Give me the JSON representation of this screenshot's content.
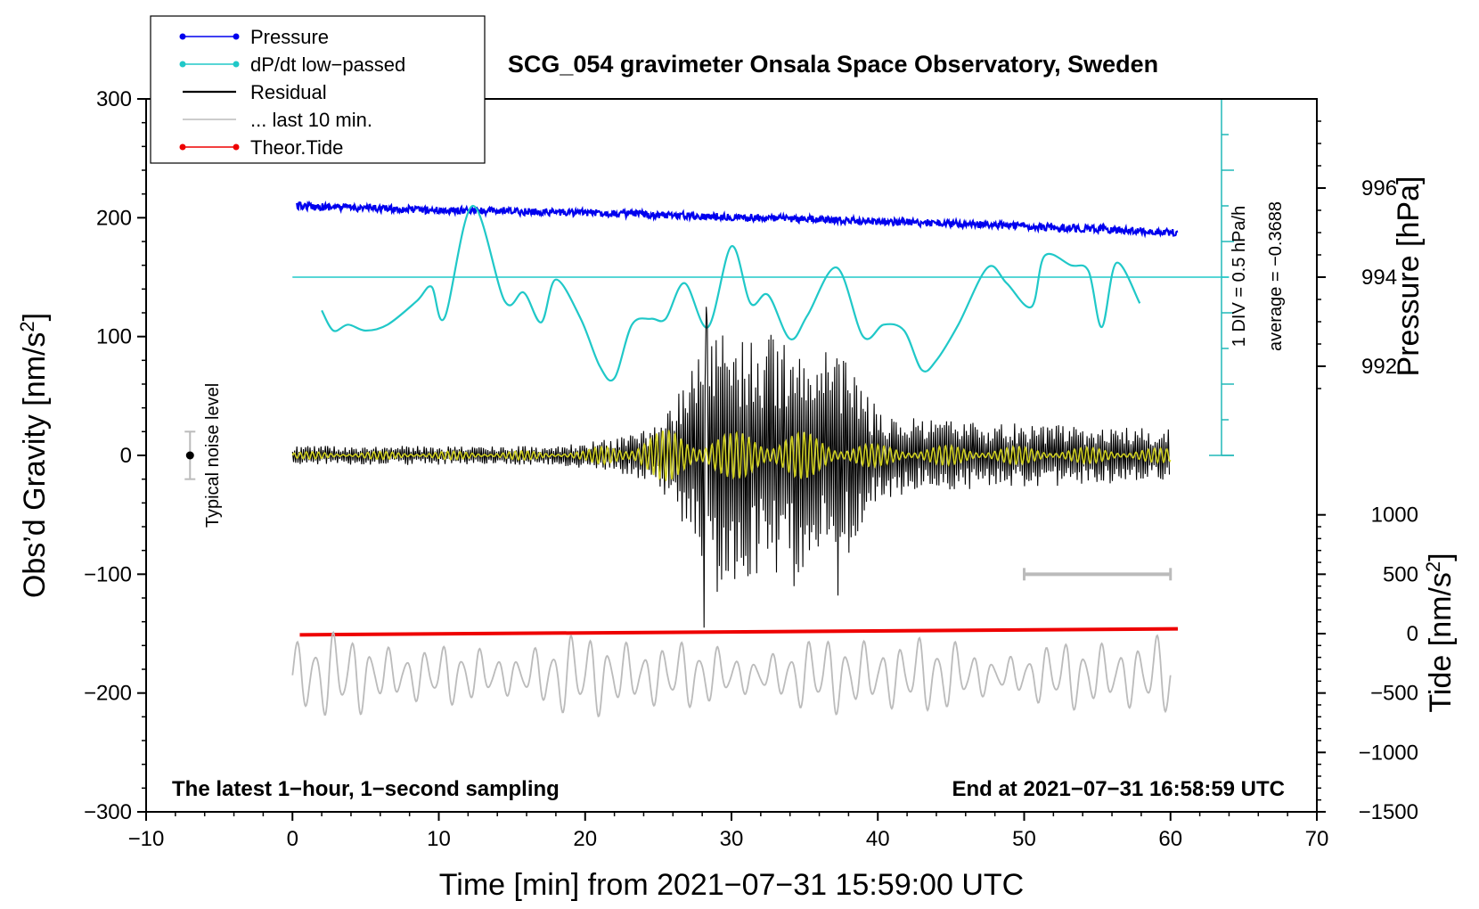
{
  "chart_data": {
    "type": "line",
    "title": "SCG_054 gravimeter Onsala Space Observatory, Sweden",
    "xlabel": "Time [min] from 2021−07−31 15:59:00 UTC",
    "ylabel_left_main": "Obs’d Gravity [nm/s",
    "ylabel_left_sup": "2",
    "ylabel_left_end": "]",
    "ylabel_right_pressure": "Pressure [hPa]",
    "ylabel_right_tide_main": "Tide [nm/s",
    "ylabel_right_tide_sup": "2",
    "ylabel_right_tide_end": "]",
    "xlim": [
      -10,
      70
    ],
    "ylim": [
      -300,
      300
    ],
    "x_ticks": [
      "−10",
      "0",
      "10",
      "20",
      "30",
      "40",
      "50",
      "60",
      "70"
    ],
    "y_ticks": [
      "−300",
      "−200",
      "−100",
      "0",
      "100",
      "200",
      "300"
    ],
    "pressure_ticks": [
      "992",
      "994",
      "996"
    ],
    "pressure_tick_values": [
      992,
      994,
      996
    ],
    "tide_ticks": [
      "−1500",
      "−1000",
      "−500",
      "0",
      "500",
      "1000"
    ],
    "tide_tick_values": [
      -1500,
      -1000,
      -500,
      0,
      500,
      1000
    ],
    "bottom_left_note": "The latest 1−hour, 1−second sampling",
    "bottom_right_note": "End at 2021−07−31 16:58:59 UTC",
    "noise_label": "Typical noise level",
    "dpdt_scale_label": "1 DIV = 0.5 hPa/h",
    "dpdt_average_label": "average = −0.3688",
    "legend": [
      {
        "name": "Pressure",
        "color": "#0000ee",
        "marker": true
      },
      {
        "name": "dP/dt low−passed",
        "color": "#20c8c8",
        "marker": true
      },
      {
        "name": "Residual",
        "color": "#000000",
        "marker": false
      },
      {
        "name": "... last 10 min.",
        "color": "#bbbbbb",
        "marker": false
      },
      {
        "name": "Theor.Tide",
        "color": "#ee0000",
        "marker": true
      }
    ],
    "series": [
      {
        "name": "Pressure",
        "unit": "hPa",
        "x": [
          0.3,
          10,
          20,
          30,
          40,
          50,
          60.5
        ],
        "values": [
          995.6,
          995.5,
          995.45,
          995.35,
          995.25,
          995.15,
          995.0
        ]
      },
      {
        "name": "dP/dt low-passed",
        "unit": "gravity-axis units",
        "x": [
          2,
          2.8,
          3.8,
          5,
          6.5,
          8.5,
          9.5,
          10.4,
          12.3,
          14.5,
          15.8,
          17,
          18,
          19.7,
          21,
          22,
          23.2,
          24.5,
          25.5,
          26.8,
          28.4,
          30,
          31.3,
          32.5,
          34,
          35.2,
          37.2,
          39,
          40.4,
          41.8,
          43,
          44,
          45.5,
          47.5,
          48.8,
          50.5,
          51.4,
          53.2,
          54.4,
          55.3,
          56.3,
          57.9
        ],
        "values": [
          122,
          105,
          110,
          105,
          110,
          130,
          142,
          116,
          210,
          130,
          137,
          112,
          148,
          115,
          75,
          65,
          110,
          115,
          115,
          145,
          108,
          176,
          128,
          135,
          98,
          118,
          158,
          100,
          110,
          105,
          72,
          80,
          110,
          158,
          145,
          125,
          168,
          160,
          155,
          108,
          162,
          128
        ]
      },
      {
        "name": "dP/dt average",
        "unit": "gravity-axis units",
        "x": [
          0,
          64
        ],
        "values": [
          150,
          150
        ]
      },
      {
        "name": "Residual envelope",
        "unit": "nm/s2",
        "x": [
          0,
          18,
          22,
          25,
          27,
          28.5,
          30,
          32,
          34,
          36,
          37.5,
          40,
          43,
          50,
          60
        ],
        "values": [
          8,
          8,
          14,
          25,
          65,
          125,
          110,
          100,
          105,
          95,
          95,
          38,
          30,
          27,
          22
        ]
      },
      {
        "name": "Residual spikes",
        "unit": "nm/s2",
        "x": [
          28.1,
          28.3,
          34.3,
          37.3
        ],
        "values": [
          -145,
          125,
          -110,
          -118
        ]
      },
      {
        "name": "Residual filtered (yellow)",
        "unit": "nm/s2",
        "x": [
          0,
          20,
          23,
          26,
          28,
          30,
          33,
          36,
          40,
          60
        ],
        "values": [
          3,
          4,
          15,
          23,
          23,
          19,
          25,
          17,
          9,
          6
        ]
      },
      {
        "name": "Theor.Tide",
        "unit": "nm/s2",
        "x": [
          0.5,
          60.5
        ],
        "values": [
          -10,
          40
        ]
      },
      {
        "name": "... last 10 min.",
        "unit": "nm/s2",
        "x": [
          0,
          60
        ],
        "values": [
          -185,
          -185
        ],
        "amplitude": [
          12,
          40
        ]
      }
    ],
    "noise_bar": {
      "x": -7,
      "center": 0,
      "half_range": 20
    },
    "last10_bar": {
      "x_start": 50,
      "x_end": 60,
      "y": -100
    }
  }
}
